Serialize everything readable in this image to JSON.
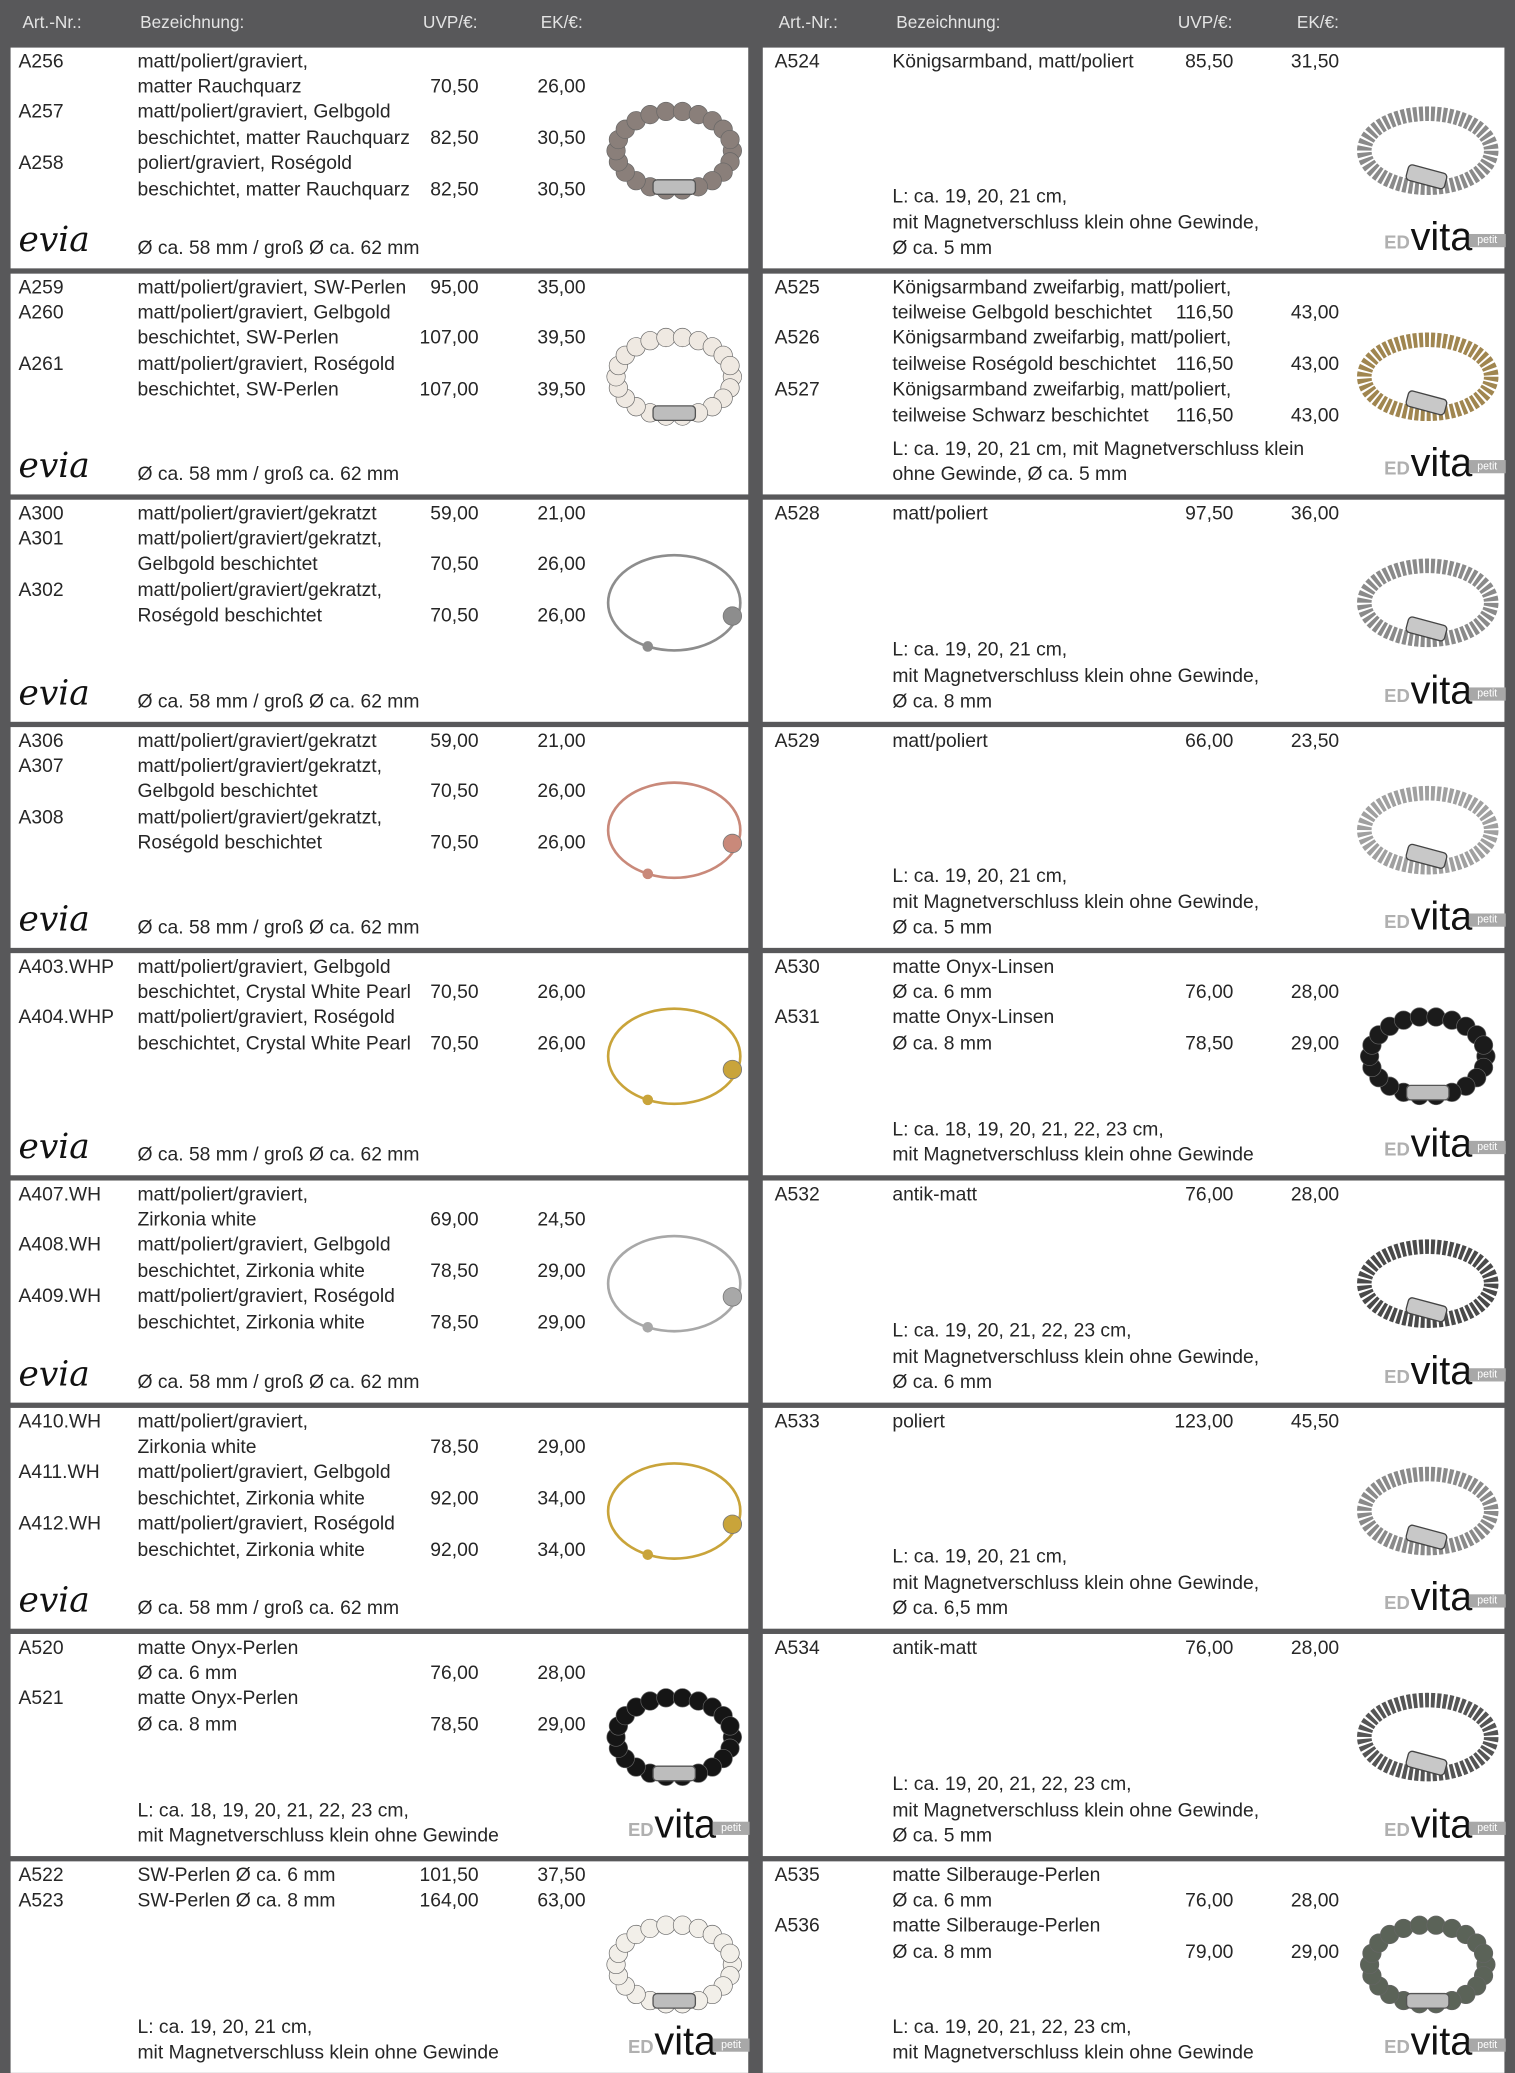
{
  "header": {
    "columns": [
      "Art.-Nr.:",
      "Bezeichnung:",
      "UVP/€:",
      "EK/€:"
    ]
  },
  "brands": {
    "evia": "evia",
    "ed": "ED",
    "vita": "vita",
    "petit": "petit"
  },
  "left": [
    {
      "rows": [
        {
          "art": "A256",
          "desc": "matt/poliert/graviert,"
        },
        {
          "desc": "matter Rauchquarz",
          "uvp": "70,50",
          "ek": "26,00"
        },
        {
          "art": "A257",
          "desc": "matt/poliert/graviert, Gelbgold"
        },
        {
          "desc": "beschichtet, matter Rauchquarz",
          "uvp": "82,50",
          "ek": "30,50"
        },
        {
          "art": "A258",
          "desc": "poliert/graviert, Roségold"
        },
        {
          "desc": "beschichtet, matter Rauchquarz",
          "uvp": "82,50",
          "ek": "30,50"
        }
      ],
      "footer": [
        "Ø ca. 58 mm / groß Ø ca. 62 mm"
      ]
    },
    {
      "rows": [
        {
          "art": "A259",
          "desc": "matt/poliert/graviert, SW-Perlen",
          "uvp": "95,00",
          "ek": "35,00"
        },
        {
          "art": "A260",
          "desc": "matt/poliert/graviert, Gelbgold"
        },
        {
          "desc": "beschichtet, SW-Perlen",
          "uvp": "107,00",
          "ek": "39,50"
        },
        {
          "art": "A261",
          "desc": "matt/poliert/graviert, Roségold"
        },
        {
          "desc": "beschichtet, SW-Perlen",
          "uvp": "107,00",
          "ek": "39,50"
        }
      ],
      "footer": [
        "Ø ca. 58 mm / groß ca. 62 mm"
      ]
    },
    {
      "rows": [
        {
          "art": "A300",
          "desc": "matt/poliert/graviert/gekratzt",
          "uvp": "59,00",
          "ek": "21,00"
        },
        {
          "art": "A301",
          "desc": "matt/poliert/graviert/gekratzt,"
        },
        {
          "desc": "Gelbgold beschichtet",
          "uvp": "70,50",
          "ek": "26,00"
        },
        {
          "art": "A302",
          "desc": "matt/poliert/graviert/gekratzt,"
        },
        {
          "desc": "Roségold beschichtet",
          "uvp": "70,50",
          "ek": "26,00"
        }
      ],
      "footer": [
        "Ø ca. 58 mm / groß Ø ca. 62 mm"
      ]
    },
    {
      "rows": [
        {
          "art": "A306",
          "desc": "matt/poliert/graviert/gekratzt",
          "uvp": "59,00",
          "ek": "21,00"
        },
        {
          "art": "A307",
          "desc": "matt/poliert/graviert/gekratzt,"
        },
        {
          "desc": "Gelbgold beschichtet",
          "uvp": "70,50",
          "ek": "26,00"
        },
        {
          "art": "A308",
          "desc": "matt/poliert/graviert/gekratzt,"
        },
        {
          "desc": "Roségold beschichtet",
          "uvp": "70,50",
          "ek": "26,00"
        }
      ],
      "footer": [
        "Ø ca. 58 mm / groß Ø ca. 62 mm"
      ]
    },
    {
      "rows": [
        {
          "art": "A403.WHP",
          "desc": "matt/poliert/graviert, Gelbgold"
        },
        {
          "desc": "beschichtet, Crystal White Pearl",
          "uvp": "70,50",
          "ek": "26,00"
        },
        {
          "art": "A404.WHP",
          "desc": "matt/poliert/graviert, Roségold"
        },
        {
          "desc": "beschichtet, Crystal White Pearl",
          "uvp": "70,50",
          "ek": "26,00"
        }
      ],
      "footer": [
        "Ø ca. 58 mm / groß Ø ca. 62 mm"
      ]
    },
    {
      "rows": [
        {
          "art": "A407.WH",
          "desc": "matt/poliert/graviert,"
        },
        {
          "desc": "Zirkonia white",
          "uvp": "69,00",
          "ek": "24,50"
        },
        {
          "art": "A408.WH",
          "desc": "matt/poliert/graviert, Gelbgold"
        },
        {
          "desc": "beschichtet, Zirkonia white",
          "uvp": "78,50",
          "ek": "29,00"
        },
        {
          "art": "A409.WH",
          "desc": "matt/poliert/graviert, Roségold"
        },
        {
          "desc": "beschichtet, Zirkonia white",
          "uvp": "78,50",
          "ek": "29,00"
        }
      ],
      "footer": [
        "Ø ca. 58 mm / groß Ø ca. 62 mm"
      ]
    },
    {
      "rows": [
        {
          "art": "A410.WH",
          "desc": "matt/poliert/graviert,"
        },
        {
          "desc": "Zirkonia white",
          "uvp": "78,50",
          "ek": "29,00"
        },
        {
          "art": "A411.WH",
          "desc": "matt/poliert/graviert, Gelbgold"
        },
        {
          "desc": "beschichtet, Zirkonia white",
          "uvp": "92,00",
          "ek": "34,00"
        },
        {
          "art": "A412.WH",
          "desc": "matt/poliert/graviert, Roségold"
        },
        {
          "desc": "beschichtet, Zirkonia white",
          "uvp": "92,00",
          "ek": "34,00"
        }
      ],
      "footer": [
        "Ø ca. 58 mm / groß ca. 62 mm"
      ]
    },
    {
      "rows": [
        {
          "art": "A520",
          "desc": "matte Onyx-Perlen"
        },
        {
          "desc": "Ø ca. 6 mm",
          "uvp": "76,00",
          "ek": "28,00"
        },
        {
          "art": "A521",
          "desc": "matte Onyx-Perlen"
        },
        {
          "desc": "Ø ca. 8 mm",
          "uvp": "78,50",
          "ek": "29,00"
        }
      ],
      "footer": [
        "L: ca. 18, 19, 20, 21, 22, 23 cm,",
        "mit Magnetverschluss klein ohne Gewinde"
      ]
    },
    {
      "rows": [
        {
          "art": "A522",
          "desc": "SW-Perlen Ø ca. 6 mm",
          "uvp": "101,50",
          "ek": "37,50"
        },
        {
          "art": "A523",
          "desc": "SW-Perlen Ø ca. 8 mm",
          "uvp": "164,00",
          "ek": "63,00"
        }
      ],
      "footer": [
        "L: ca. 19, 20, 21 cm,",
        "mit Magnetverschluss klein ohne Gewinde"
      ]
    }
  ],
  "right": [
    {
      "rows": [
        {
          "art": "A524",
          "desc": "Königsarmband, matt/poliert",
          "uvp": "85,50",
          "ek": "31,50"
        }
      ],
      "footer": [
        "L: ca. 19, 20, 21 cm,",
        "mit Magnetverschluss klein ohne Gewinde,",
        "Ø ca. 5 mm"
      ]
    },
    {
      "rows": [
        {
          "art": "A525",
          "desc": "Königsarmband zweifarbig, matt/poliert,"
        },
        {
          "desc": "teilweise Gelbgold beschichtet",
          "uvp": "116,50",
          "ek": "43,00"
        },
        {
          "art": "A526",
          "desc": "Königsarmband zweifarbig, matt/poliert,"
        },
        {
          "desc": "teilweise Roségold beschichtet",
          "uvp": "116,50",
          "ek": "43,00"
        },
        {
          "art": "A527",
          "desc": "Königsarmband zweifarbig, matt/poliert,"
        },
        {
          "desc": "teilweise Schwarz beschichtet",
          "uvp": "116,50",
          "ek": "43,00"
        }
      ],
      "footer": [
        "L: ca. 19, 20, 21 cm, mit Magnetverschluss klein",
        "ohne Gewinde, Ø ca. 5 mm"
      ]
    },
    {
      "rows": [
        {
          "art": "A528",
          "desc": "matt/poliert",
          "uvp": "97,50",
          "ek": "36,00"
        }
      ],
      "footer": [
        "L: ca. 19, 20, 21 cm,",
        "mit Magnetverschluss klein ohne Gewinde,",
        "Ø ca. 8 mm"
      ]
    },
    {
      "rows": [
        {
          "art": "A529",
          "desc": "matt/poliert",
          "uvp": "66,00",
          "ek": "23,50"
        }
      ],
      "footer": [
        "L: ca. 19, 20, 21 cm,",
        "mit Magnetverschluss klein ohne Gewinde,",
        "Ø ca. 5 mm"
      ]
    },
    {
      "rows": [
        {
          "art": "A530",
          "desc": "matte Onyx-Linsen"
        },
        {
          "desc": "Ø ca. 6 mm",
          "uvp": "76,00",
          "ek": "28,00"
        },
        {
          "art": "A531",
          "desc": "matte Onyx-Linsen"
        },
        {
          "desc": "Ø ca. 8 mm",
          "uvp": "78,50",
          "ek": "29,00"
        }
      ],
      "footer": [
        "L: ca. 18, 19, 20, 21, 22, 23 cm,",
        "mit Magnetverschluss klein ohne Gewinde"
      ]
    },
    {
      "rows": [
        {
          "art": "A532",
          "desc": "antik-matt",
          "uvp": "76,00",
          "ek": "28,00"
        }
      ],
      "footer": [
        "L: ca. 19, 20, 21, 22, 23 cm,",
        "mit Magnetverschluss klein ohne Gewinde,",
        "Ø ca. 6 mm"
      ]
    },
    {
      "rows": [
        {
          "art": "A533",
          "desc": "poliert",
          "uvp": "123,00",
          "ek": "45,50"
        }
      ],
      "footer": [
        "L: ca. 19, 20, 21 cm,",
        "mit Magnetverschluss klein ohne Gewinde,",
        "Ø ca. 6,5 mm"
      ]
    },
    {
      "rows": [
        {
          "art": "A534",
          "desc": "antik-matt",
          "uvp": "76,00",
          "ek": "28,00"
        }
      ],
      "footer": [
        "L: ca. 19, 20, 21, 22, 23 cm,",
        "mit Magnetverschluss klein ohne Gewinde,",
        "Ø ca. 5 mm"
      ]
    },
    {
      "rows": [
        {
          "art": "A535",
          "desc": "matte Silberauge-Perlen"
        },
        {
          "desc": "Ø ca. 6 mm",
          "uvp": "76,00",
          "ek": "28,00"
        },
        {
          "art": "A536",
          "desc": "matte Silberauge-Perlen"
        },
        {
          "desc": "Ø ca. 8 mm",
          "uvp": "79,00",
          "ek": "29,00"
        }
      ],
      "footer": [
        "L: ca. 19, 20, 21, 22, 23 cm,",
        "mit Magnetverschluss klein ohne Gewinde"
      ]
    }
  ]
}
